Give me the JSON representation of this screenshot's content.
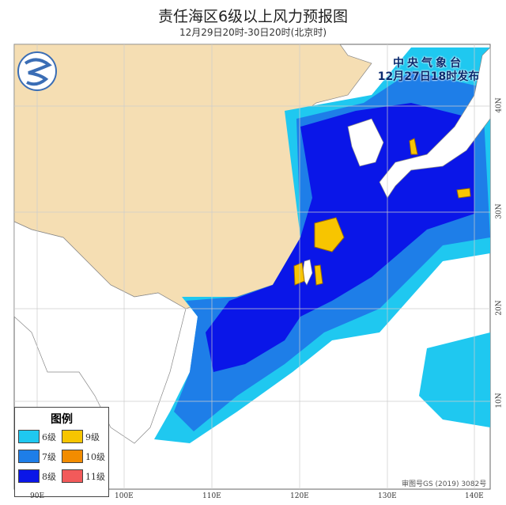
{
  "title": "责任海区6级以上风力预报图",
  "subtitle": "12月29日20时-30日20时(北京时)",
  "issuer": {
    "name": "中央气象台",
    "issued": "12月27日18时发布"
  },
  "legend": {
    "title": "图例",
    "items": [
      {
        "label": "6级",
        "color": "#1fc8f0"
      },
      {
        "label": "9级",
        "color": "#f7c500"
      },
      {
        "label": "7级",
        "color": "#1e7ee8"
      },
      {
        "label": "10级",
        "color": "#f28c00"
      },
      {
        "label": "8级",
        "color": "#0a16e8"
      },
      {
        "label": "11级",
        "color": "#f25a5a"
      }
    ]
  },
  "lon_ticks": [
    "90E",
    "100E",
    "110E",
    "120E",
    "130E",
    "140E"
  ],
  "lat_ticks": [
    "40N",
    "30N",
    "20N",
    "10N"
  ],
  "approval": "审图号GS (2019) 3082号",
  "colors": {
    "china_land": "#f5deb3",
    "other_land": "#ffffff",
    "grid": "#cccccc"
  }
}
